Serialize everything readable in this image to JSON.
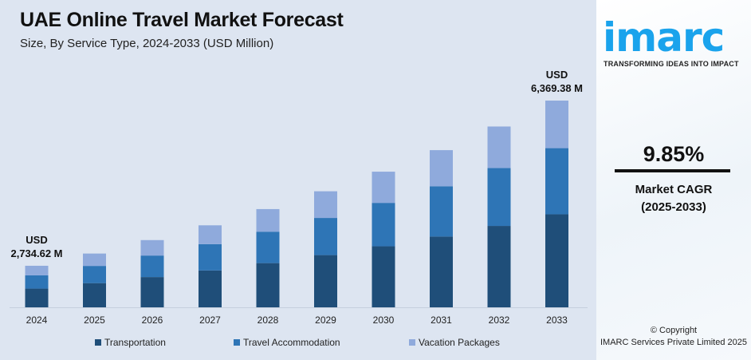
{
  "header": {
    "title": "UAE Online Travel Market Forecast",
    "subtitle": "Size, By Service Type, 2024-2033 (USD Million)"
  },
  "chart_data": {
    "type": "bar",
    "stacked": true,
    "categories": [
      "2024",
      "2025",
      "2026",
      "2027",
      "2028",
      "2029",
      "2030",
      "2031",
      "2032",
      "2033"
    ],
    "series": [
      {
        "name": "Transportation",
        "color": "#1f4e79",
        "values": [
          1231,
          1352,
          1485,
          1631,
          1792,
          1968,
          2162,
          2376,
          2610,
          2866
        ]
      },
      {
        "name": "Travel Accommodation",
        "color": "#2e75b6",
        "values": [
          875,
          961,
          1056,
          1160,
          1274,
          1400,
          1538,
          1689,
          1856,
          2038
        ]
      },
      {
        "name": "Vacation Packages",
        "color": "#8faadc",
        "values": [
          629,
          691,
          759,
          834,
          916,
          1006,
          1105,
          1214,
          1333,
          1465
        ]
      }
    ],
    "totals": [
      2734.62,
      3004,
      3300,
      3625,
      3982,
      4374,
      4805,
      5279,
      5799,
      6369.38
    ],
    "annotations": [
      {
        "category": "2024",
        "line1": "USD",
        "line2": "2,734.62 M"
      },
      {
        "category": "2033",
        "line1": "USD",
        "line2": "6,369.38 M"
      }
    ],
    "xlabel": "",
    "ylabel": "",
    "grid": false,
    "legend": "bottom"
  },
  "sidebar": {
    "logo": "imarc",
    "tagline": "TRANSFORMING IDEAS INTO IMPACT",
    "cagr_value": "9.85%",
    "cagr_label": "Market CAGR",
    "cagr_period": "(2025-2033)",
    "copyright": "© Copyright",
    "company": "IMARC Services Private Limited 2025"
  }
}
